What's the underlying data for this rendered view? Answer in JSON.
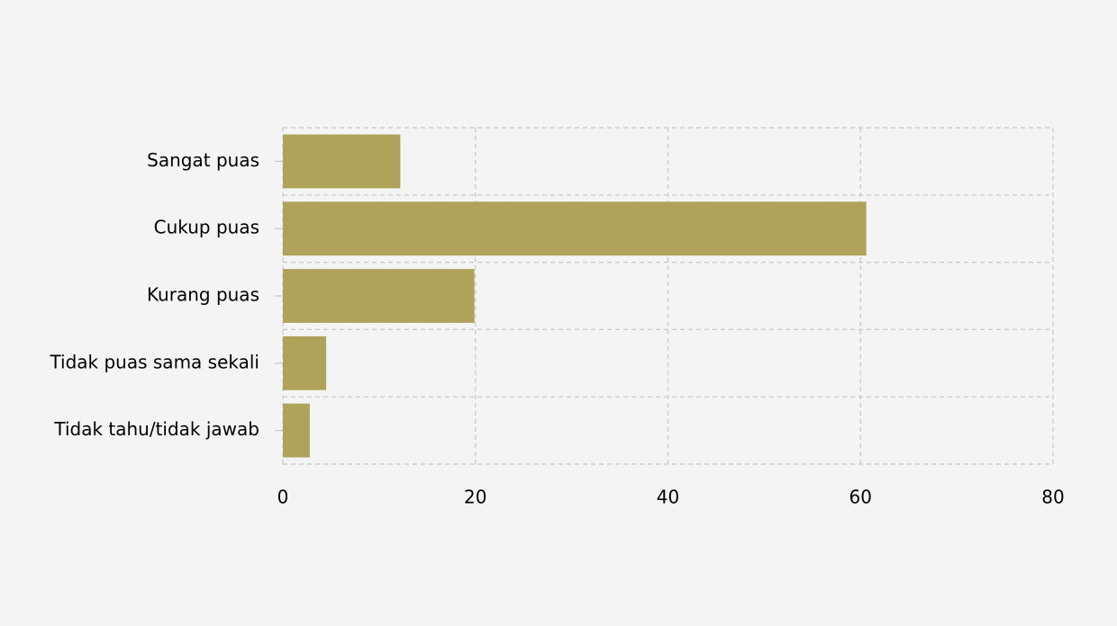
{
  "chart_data": {
    "type": "bar",
    "orientation": "horizontal",
    "categories": [
      "Sangat puas",
      "Cukup puas",
      "Kurang puas",
      "Tidak puas sama sekali",
      "Tidak tahu/tidak jawab"
    ],
    "values": [
      12.2,
      60.6,
      19.9,
      4.5,
      2.8
    ],
    "color": "#afa25b",
    "xlim": [
      0,
      80
    ],
    "xticks": [
      0,
      20,
      40,
      60,
      80
    ],
    "grid": true
  }
}
